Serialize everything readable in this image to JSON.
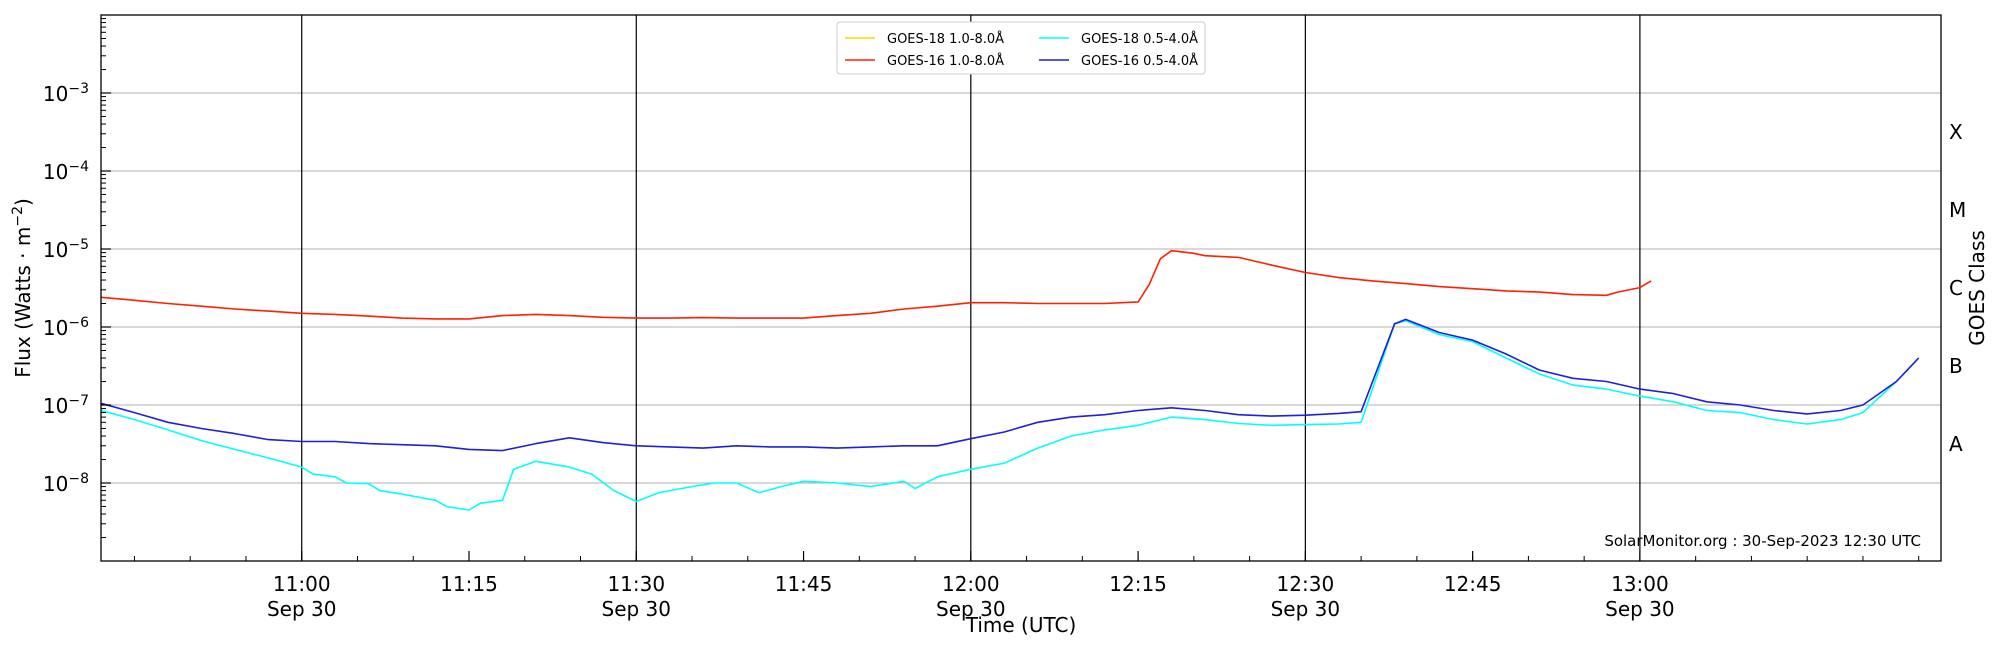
{
  "chart_data": {
    "type": "line",
    "xlabel": "Time (UTC)",
    "ylabel_main": "Flux (Watts · m",
    "ylabel_sup": "−2",
    "ylabel_close": ")",
    "ylabel_right": "GOES Class",
    "watermark": "SolarMonitor.org : 30-Sep-2023 12:30 UTC",
    "y_scale": "log",
    "ylim": [
      1e-09,
      0.01
    ],
    "xlim": [
      "2023-09-30 10:42",
      "2023-09-30 13:27"
    ],
    "y_ticks": [
      {
        "value": 1e-08,
        "base": "10",
        "exp": "−8"
      },
      {
        "value": 1e-07,
        "base": "10",
        "exp": "−7"
      },
      {
        "value": 1e-06,
        "base": "10",
        "exp": "−6"
      },
      {
        "value": 1e-05,
        "base": "10",
        "exp": "−5"
      },
      {
        "value": 0.0001,
        "base": "10",
        "exp": "−4"
      },
      {
        "value": 0.001,
        "base": "10",
        "exp": "−3"
      }
    ],
    "x_ticks": [
      {
        "time": "2023-09-30 11:00",
        "label": "11:00",
        "sublabel": "Sep 30"
      },
      {
        "time": "2023-09-30 11:15",
        "label": "11:15",
        "sublabel": ""
      },
      {
        "time": "2023-09-30 11:30",
        "label": "11:30",
        "sublabel": "Sep 30"
      },
      {
        "time": "2023-09-30 11:45",
        "label": "11:45",
        "sublabel": ""
      },
      {
        "time": "2023-09-30 12:00",
        "label": "12:00",
        "sublabel": "Sep 30"
      },
      {
        "time": "2023-09-30 12:15",
        "label": "12:15",
        "sublabel": ""
      },
      {
        "time": "2023-09-30 12:30",
        "label": "12:30",
        "sublabel": "Sep 30"
      },
      {
        "time": "2023-09-30 12:45",
        "label": "12:45",
        "sublabel": ""
      },
      {
        "time": "2023-09-30 13:00",
        "label": "13:00",
        "sublabel": "Sep 30"
      }
    ],
    "vertical_lines": [
      "2023-09-30 11:00",
      "2023-09-30 11:30",
      "2023-09-30 12:00",
      "2023-09-30 12:30",
      "2023-09-30 13:00"
    ],
    "goes_classes": [
      {
        "label": "A",
        "value": 3.16e-08
      },
      {
        "label": "B",
        "value": 3.16e-07
      },
      {
        "label": "C",
        "value": 3.16e-06
      },
      {
        "label": "M",
        "value": 3.16e-05
      },
      {
        "label": "X",
        "value": 0.000316
      }
    ],
    "grid_y": true,
    "legend_position": "top-center",
    "series": [
      {
        "name": "GOES-18 1.0-8.0Å",
        "color": "#ffd700",
        "points": []
      },
      {
        "name": "GOES-16 1.0-8.0Å",
        "color": "#ff2000",
        "points": [
          [
            "2023-09-30 10:42",
            2.4e-06
          ],
          [
            "2023-09-30 10:45",
            2.2e-06
          ],
          [
            "2023-09-30 10:48",
            2e-06
          ],
          [
            "2023-09-30 10:51",
            1.85e-06
          ],
          [
            "2023-09-30 10:54",
            1.7e-06
          ],
          [
            "2023-09-30 10:57",
            1.6e-06
          ],
          [
            "2023-09-30 11:00",
            1.5e-06
          ],
          [
            "2023-09-30 11:03",
            1.45e-06
          ],
          [
            "2023-09-30 11:06",
            1.38e-06
          ],
          [
            "2023-09-30 11:09",
            1.3e-06
          ],
          [
            "2023-09-30 11:12",
            1.27e-06
          ],
          [
            "2023-09-30 11:15",
            1.27e-06
          ],
          [
            "2023-09-30 11:18",
            1.4e-06
          ],
          [
            "2023-09-30 11:21",
            1.45e-06
          ],
          [
            "2023-09-30 11:24",
            1.4e-06
          ],
          [
            "2023-09-30 11:27",
            1.33e-06
          ],
          [
            "2023-09-30 11:30",
            1.3e-06
          ],
          [
            "2023-09-30 11:33",
            1.3e-06
          ],
          [
            "2023-09-30 11:36",
            1.32e-06
          ],
          [
            "2023-09-30 11:39",
            1.3e-06
          ],
          [
            "2023-09-30 11:42",
            1.3e-06
          ],
          [
            "2023-09-30 11:45",
            1.3e-06
          ],
          [
            "2023-09-30 11:48",
            1.4e-06
          ],
          [
            "2023-09-30 11:51",
            1.5e-06
          ],
          [
            "2023-09-30 11:54",
            1.7e-06
          ],
          [
            "2023-09-30 11:57",
            1.85e-06
          ],
          [
            "2023-09-30 12:00",
            2.05e-06
          ],
          [
            "2023-09-30 12:03",
            2.05e-06
          ],
          [
            "2023-09-30 12:06",
            2e-06
          ],
          [
            "2023-09-30 12:09",
            2e-06
          ],
          [
            "2023-09-30 12:12",
            2e-06
          ],
          [
            "2023-09-30 12:15",
            2.1e-06
          ],
          [
            "2023-09-30 12:16",
            3.5e-06
          ],
          [
            "2023-09-30 12:17",
            7.5e-06
          ],
          [
            "2023-09-30 12:18",
            9.5e-06
          ],
          [
            "2023-09-30 12:20",
            8.8e-06
          ],
          [
            "2023-09-30 12:21",
            8.2e-06
          ],
          [
            "2023-09-30 12:24",
            7.8e-06
          ],
          [
            "2023-09-30 12:27",
            6.2e-06
          ],
          [
            "2023-09-30 12:30",
            5e-06
          ],
          [
            "2023-09-30 12:33",
            4.3e-06
          ],
          [
            "2023-09-30 12:36",
            3.9e-06
          ],
          [
            "2023-09-30 12:39",
            3.6e-06
          ],
          [
            "2023-09-30 12:42",
            3.3e-06
          ],
          [
            "2023-09-30 12:45",
            3.1e-06
          ],
          [
            "2023-09-30 12:48",
            2.9e-06
          ],
          [
            "2023-09-30 12:51",
            2.8e-06
          ],
          [
            "2023-09-30 12:54",
            2.6e-06
          ],
          [
            "2023-09-30 12:57",
            2.55e-06
          ],
          [
            "2023-09-30 12:58",
            2.8e-06
          ],
          [
            "2023-09-30 13:00",
            3.2e-06
          ],
          [
            "2023-09-30 13:01",
            3.9e-06
          ]
        ]
      },
      {
        "name": "GOES-18 0.5-4.0Å",
        "color": "#00ffff",
        "points": [
          [
            "2023-09-30 10:42",
            8.5e-08
          ],
          [
            "2023-09-30 10:45",
            6.5e-08
          ],
          [
            "2023-09-30 10:48",
            4.8e-08
          ],
          [
            "2023-09-30 10:51",
            3.5e-08
          ],
          [
            "2023-09-30 10:54",
            2.7e-08
          ],
          [
            "2023-09-30 10:57",
            2.1e-08
          ],
          [
            "2023-09-30 11:00",
            1.6e-08
          ],
          [
            "2023-09-30 11:01",
            1.3e-08
          ],
          [
            "2023-09-30 11:03",
            1.2e-08
          ],
          [
            "2023-09-30 11:04",
            1e-08
          ],
          [
            "2023-09-30 11:06",
            9.8e-09
          ],
          [
            "2023-09-30 11:07",
            8e-09
          ],
          [
            "2023-09-30 11:09",
            7.2e-09
          ],
          [
            "2023-09-30 11:12",
            6e-09
          ],
          [
            "2023-09-30 11:13",
            5e-09
          ],
          [
            "2023-09-30 11:15",
            4.5e-09
          ],
          [
            "2023-09-30 11:16",
            5.5e-09
          ],
          [
            "2023-09-30 11:18",
            6e-09
          ],
          [
            "2023-09-30 11:19",
            1.5e-08
          ],
          [
            "2023-09-30 11:21",
            1.9e-08
          ],
          [
            "2023-09-30 11:24",
            1.6e-08
          ],
          [
            "2023-09-30 11:26",
            1.3e-08
          ],
          [
            "2023-09-30 11:28",
            8e-09
          ],
          [
            "2023-09-30 11:30",
            5.8e-09
          ],
          [
            "2023-09-30 11:32",
            7.5e-09
          ],
          [
            "2023-09-30 11:33",
            8e-09
          ],
          [
            "2023-09-30 11:35",
            9e-09
          ],
          [
            "2023-09-30 11:37",
            1e-08
          ],
          [
            "2023-09-30 11:39",
            1e-08
          ],
          [
            "2023-09-30 11:41",
            7.5e-09
          ],
          [
            "2023-09-30 11:43",
            9e-09
          ],
          [
            "2023-09-30 11:45",
            1.05e-08
          ],
          [
            "2023-09-30 11:48",
            1e-08
          ],
          [
            "2023-09-30 11:51",
            9e-09
          ],
          [
            "2023-09-30 11:54",
            1.05e-08
          ],
          [
            "2023-09-30 11:55",
            8.5e-09
          ],
          [
            "2023-09-30 11:57",
            1.2e-08
          ],
          [
            "2023-09-30 12:00",
            1.5e-08
          ],
          [
            "2023-09-30 12:03",
            1.8e-08
          ],
          [
            "2023-09-30 12:06",
            2.8e-08
          ],
          [
            "2023-09-30 12:09",
            4e-08
          ],
          [
            "2023-09-30 12:12",
            4.8e-08
          ],
          [
            "2023-09-30 12:15",
            5.5e-08
          ],
          [
            "2023-09-30 12:18",
            7e-08
          ],
          [
            "2023-09-30 12:21",
            6.5e-08
          ],
          [
            "2023-09-30 12:24",
            5.8e-08
          ],
          [
            "2023-09-30 12:27",
            5.5e-08
          ],
          [
            "2023-09-30 12:30",
            5.6e-08
          ],
          [
            "2023-09-30 12:33",
            5.7e-08
          ],
          [
            "2023-09-30 12:35",
            6e-08
          ],
          [
            "2023-09-30 12:38",
            1.1e-06
          ],
          [
            "2023-09-30 12:39",
            1.2e-06
          ],
          [
            "2023-09-30 12:42",
            8e-07
          ],
          [
            "2023-09-30 12:45",
            6.5e-07
          ],
          [
            "2023-09-30 12:48",
            4e-07
          ],
          [
            "2023-09-30 12:51",
            2.5e-07
          ],
          [
            "2023-09-30 12:54",
            1.8e-07
          ],
          [
            "2023-09-30 12:57",
            1.6e-07
          ],
          [
            "2023-09-30 13:00",
            1.3e-07
          ],
          [
            "2023-09-30 13:03",
            1.1e-07
          ],
          [
            "2023-09-30 13:06",
            8.5e-08
          ],
          [
            "2023-09-30 13:09",
            8e-08
          ],
          [
            "2023-09-30 13:12",
            6.5e-08
          ],
          [
            "2023-09-30 13:15",
            5.7e-08
          ],
          [
            "2023-09-30 13:18",
            6.5e-08
          ],
          [
            "2023-09-30 13:20",
            8e-08
          ],
          [
            "2023-09-30 13:23",
            2e-07
          ],
          [
            "2023-09-30 13:25",
            4e-07
          ]
        ]
      },
      {
        "name": "GOES-16 0.5-4.0Å",
        "color": "#1f1fdd",
        "points": [
          [
            "2023-09-30 10:42",
            1.05e-07
          ],
          [
            "2023-09-30 10:45",
            8e-08
          ],
          [
            "2023-09-30 10:48",
            6e-08
          ],
          [
            "2023-09-30 10:51",
            5e-08
          ],
          [
            "2023-09-30 10:54",
            4.3e-08
          ],
          [
            "2023-09-30 10:57",
            3.6e-08
          ],
          [
            "2023-09-30 11:00",
            3.4e-08
          ],
          [
            "2023-09-30 11:03",
            3.4e-08
          ],
          [
            "2023-09-30 11:06",
            3.2e-08
          ],
          [
            "2023-09-30 11:09",
            3.1e-08
          ],
          [
            "2023-09-30 11:12",
            3e-08
          ],
          [
            "2023-09-30 11:15",
            2.7e-08
          ],
          [
            "2023-09-30 11:18",
            2.6e-08
          ],
          [
            "2023-09-30 11:21",
            3.2e-08
          ],
          [
            "2023-09-30 11:24",
            3.8e-08
          ],
          [
            "2023-09-30 11:27",
            3.3e-08
          ],
          [
            "2023-09-30 11:30",
            3e-08
          ],
          [
            "2023-09-30 11:33",
            2.9e-08
          ],
          [
            "2023-09-30 11:36",
            2.8e-08
          ],
          [
            "2023-09-30 11:39",
            3e-08
          ],
          [
            "2023-09-30 11:42",
            2.9e-08
          ],
          [
            "2023-09-30 11:45",
            2.9e-08
          ],
          [
            "2023-09-30 11:48",
            2.8e-08
          ],
          [
            "2023-09-30 11:51",
            2.9e-08
          ],
          [
            "2023-09-30 11:54",
            3e-08
          ],
          [
            "2023-09-30 11:57",
            3e-08
          ],
          [
            "2023-09-30 12:00",
            3.7e-08
          ],
          [
            "2023-09-30 12:03",
            4.5e-08
          ],
          [
            "2023-09-30 12:06",
            6e-08
          ],
          [
            "2023-09-30 12:09",
            7e-08
          ],
          [
            "2023-09-30 12:12",
            7.5e-08
          ],
          [
            "2023-09-30 12:15",
            8.5e-08
          ],
          [
            "2023-09-30 12:18",
            9.2e-08
          ],
          [
            "2023-09-30 12:21",
            8.5e-08
          ],
          [
            "2023-09-30 12:24",
            7.5e-08
          ],
          [
            "2023-09-30 12:27",
            7.2e-08
          ],
          [
            "2023-09-30 12:30",
            7.4e-08
          ],
          [
            "2023-09-30 12:33",
            7.8e-08
          ],
          [
            "2023-09-30 12:35",
            8.2e-08
          ],
          [
            "2023-09-30 12:38",
            1.1e-06
          ],
          [
            "2023-09-30 12:39",
            1.25e-06
          ],
          [
            "2023-09-30 12:42",
            8.5e-07
          ],
          [
            "2023-09-30 12:45",
            6.8e-07
          ],
          [
            "2023-09-30 12:48",
            4.5e-07
          ],
          [
            "2023-09-30 12:51",
            2.8e-07
          ],
          [
            "2023-09-30 12:54",
            2.2e-07
          ],
          [
            "2023-09-30 12:57",
            2e-07
          ],
          [
            "2023-09-30 13:00",
            1.6e-07
          ],
          [
            "2023-09-30 13:03",
            1.4e-07
          ],
          [
            "2023-09-30 13:06",
            1.1e-07
          ],
          [
            "2023-09-30 13:09",
            1e-07
          ],
          [
            "2023-09-30 13:12",
            8.5e-08
          ],
          [
            "2023-09-30 13:15",
            7.7e-08
          ],
          [
            "2023-09-30 13:18",
            8.5e-08
          ],
          [
            "2023-09-30 13:20",
            1e-07
          ],
          [
            "2023-09-30 13:23",
            2e-07
          ],
          [
            "2023-09-30 13:25",
            4e-07
          ]
        ]
      }
    ]
  }
}
